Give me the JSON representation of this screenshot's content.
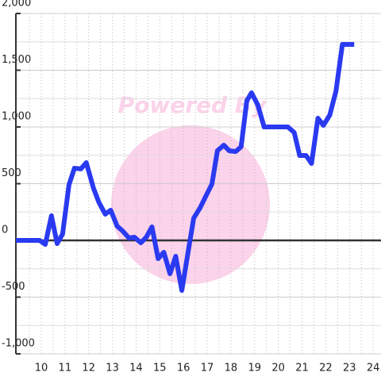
{
  "chart_data": {
    "type": "line",
    "watermark": "Powered By",
    "x": [
      8.93,
      9.93,
      10.17,
      10.43,
      10.67,
      10.9,
      11.17,
      11.4,
      11.67,
      11.9,
      12.2,
      12.43,
      12.7,
      12.93,
      13.2,
      13.43,
      13.7,
      13.93,
      14.2,
      14.43,
      14.67,
      14.93,
      15.17,
      15.43,
      15.67,
      15.93,
      16.17,
      16.43,
      16.7,
      16.93,
      17.2,
      17.43,
      17.7,
      17.93,
      18.2,
      18.43,
      18.67,
      18.87,
      19.13,
      19.4,
      19.63,
      19.87,
      20.4,
      20.67,
      20.9,
      21.17,
      21.4,
      21.67,
      21.9,
      22.17,
      22.43,
      22.7,
      23.2
    ],
    "series": [
      {
        "color": "#2a3af0",
        "values": [
          0,
          0,
          -35,
          217,
          -28,
          56,
          490,
          636,
          630,
          685,
          462,
          336,
          231,
          266,
          126,
          84,
          21,
          28,
          -21,
          28,
          119,
          -161,
          -105,
          -294,
          -140,
          -441,
          -133,
          196,
          287,
          385,
          497,
          790,
          839,
          790,
          783,
          825,
          1231,
          1301,
          1196,
          1000,
          1000,
          1000,
          1000,
          951,
          748,
          748,
          678,
          1077,
          1014,
          1105,
          1315,
          1727,
          1727
        ]
      }
    ],
    "xlim": [
      8.93,
      24.33
    ],
    "xticks": [
      10,
      11,
      12,
      13,
      14,
      15,
      16,
      17,
      18,
      19,
      20,
      21,
      22,
      23,
      24
    ],
    "ylim": [
      -1000,
      2000
    ],
    "yticks": [
      {
        "value": -1000,
        "label": "-1,000"
      },
      -500,
      0,
      500,
      {
        "value": 1000,
        "label": "1,000"
      },
      {
        "value": 1500,
        "label": "1,500"
      },
      {
        "value": 2000,
        "label": "2,000"
      }
    ],
    "grid": true
  }
}
